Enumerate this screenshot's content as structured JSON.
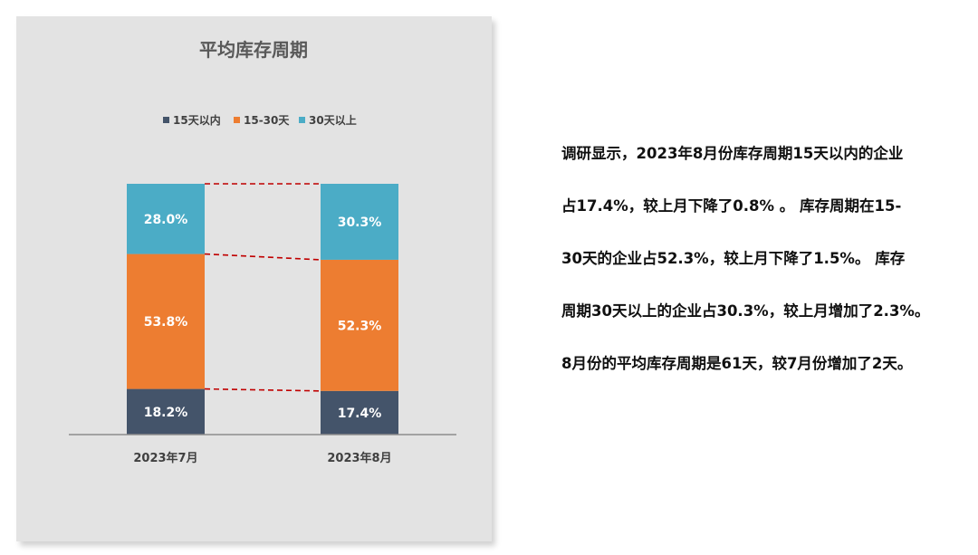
{
  "chart_data": {
    "type": "bar",
    "stacked": true,
    "percent": true,
    "title": "平均库存周期",
    "categories": [
      "2023年7月",
      "2023年8月"
    ],
    "series": [
      {
        "name": "15天以内",
        "values": [
          18.2,
          17.4
        ],
        "color": "#44546a",
        "labels": [
          "18.2%",
          "17.4%"
        ]
      },
      {
        "name": "15-30天",
        "values": [
          53.8,
          52.3
        ],
        "color": "#ed7d31",
        "labels": [
          "53.8%",
          "52.3%"
        ]
      },
      {
        "name": "30天以上",
        "values": [
          28.0,
          30.3
        ],
        "color": "#4bacc6",
        "labels": [
          "28.0%",
          "30.3%"
        ]
      }
    ],
    "ylim": [
      0,
      100
    ],
    "legend": "top",
    "grid": false,
    "series_lines": {
      "color": "#c00000",
      "style": "dashed"
    }
  },
  "summary": {
    "lines": [
      "调研显示，2023年8月份库存周期15天以内的企业",
      "占17.4%，较上月下降了0.8% 。 库存周期在15-",
      "30天的企业占52.3%，较上月下降了1.5%。 库存",
      "周期30天以上的企业占30.3%，较上月增加了2.3%。",
      "8月份的平均库存周期是61天，较7月份增加了2天。"
    ]
  }
}
